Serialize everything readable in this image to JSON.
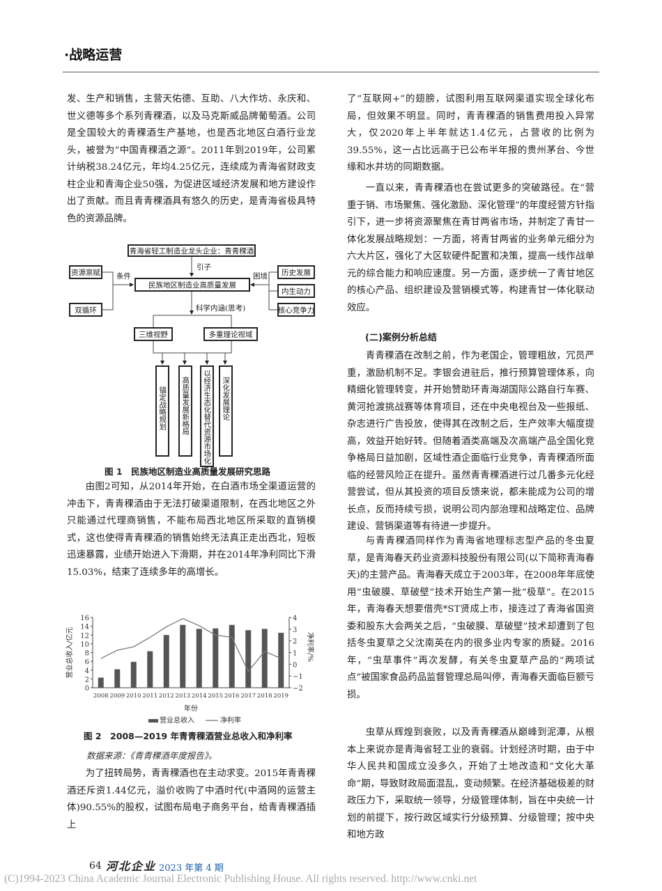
{
  "header": {
    "section": "·战略运营"
  },
  "left": {
    "para1": "发、生产和销售，主营天佑德、互助、八大作坊、永庆和、世义德等多个系列青稞酒，以及马克斯威品牌葡萄酒。公司是全国较大的青稞酒生产基地，也是西北地区白酒行业龙头，被誉为“中国青稞酒之源”。2011年到2019年，公司累计纳税38.24亿元，年均4.25亿元，连续成为青海省财政支柱企业和青海企业50强，为促进区域经济发展和地方建设作出了贡献。而且青青稞酒具有悠久的历史，是青海省极具特色的资源品牌。",
    "para2": "由图2可知，从2014年开始，在白酒市场全渠道运营的冲击下，青青稞酒由于无法打破渠道限制，在西北地区之外只能通过代理商销售，不能布局西北地区所采取的直销模式，这也使得青青稞酒的销售始终无法真正走出西北，短板迅速暴露，业绩开始进入下滑期，并在2014年净利同比下滑15.03%，结束了连续多年的高增长。",
    "source": "数据来源：《青青稞酒年度报告》。",
    "para3": "为了扭转局势，青青稞酒也在主动求变。2015年青青稞酒还斥资1.44亿元，溢价收购了中酒时代(中酒网的运营主体)90.55%的股权，试图布局电子商务平台，给青青稞酒插上"
  },
  "figure1": {
    "caption": "图 1　民族地区制造业高质量发展研究思路",
    "top": "青海省轻工制造业龙头企业：青青稞酒",
    "lead": "引子",
    "center": "民族地区制造业高质量发展",
    "cond_label": "条件",
    "conds": [
      "资源禀赋",
      "双循环"
    ],
    "dilemma_label": "困境",
    "dilemmas": [
      "历史发展",
      "内生动力",
      "核心竞争力"
    ],
    "connotation": "科学内涵(思考)",
    "views": [
      "三维视野",
      "多重理论视域"
    ],
    "outcomes": [
      "锚定战略规划",
      "高质量发展新格局",
      "以经济生态化替代资源市场化",
      "深化发展理论"
    ]
  },
  "chart_data": {
    "type": "bar+line",
    "categories": [
      "2008",
      "2009",
      "2010",
      "2011",
      "2012",
      "2013",
      "2014",
      "2015",
      "2016",
      "2017",
      "2018",
      "2019"
    ],
    "series": [
      {
        "name": "营业总收入",
        "type": "bar",
        "axis": "left",
        "values": [
          2.3,
          4.2,
          5.9,
          8.3,
          12.0,
          14.3,
          13.4,
          13.5,
          14.3,
          13.1,
          13.4,
          12.5
        ],
        "color": "#555555"
      },
      {
        "name": "净利率",
        "type": "line",
        "axis": "right",
        "values": [
          0.5,
          1.2,
          1.5,
          2.3,
          3.2,
          3.9,
          3.3,
          2.5,
          2.3,
          -0.6,
          1.1,
          0.5
        ],
        "color": "#777777"
      }
    ],
    "xlabel": "年份",
    "ylabel": "营业总收入/亿元",
    "y2label": "净利率/%",
    "ylim": [
      0,
      16
    ],
    "yticks": [
      "0",
      "2",
      "4",
      "6",
      "8",
      "10",
      "12",
      "14",
      "16"
    ],
    "y2lim": [
      -2,
      4
    ],
    "y2ticks": [
      "−2",
      "−1",
      "0",
      "1",
      "2",
      "3",
      "4"
    ],
    "legend": "bottom",
    "caption": "图 2　2008—2019 年青青稞酒营业总收入和净利率"
  },
  "right": {
    "para1": "了“互联网+”的翅膀，试图利用互联网渠道实现全球化布局，但效果不明显。同时，青青稞酒的销售费用投入异常大，仅2020年上半年就达1.4亿元，占营收的比例为39.55%，这一占比远高于已公布半年报的贵州茅台、今世缘和水井坊的同期数据。",
    "para2": "一直以来，青青稞酒也在尝试更多的突破路径。在“营重于销、市场聚焦、强化激励、深化管理”的年度经营方针指引下，进一步将资源聚焦在青甘两省市场，并制定了青甘一体化发展战略规划：一方面，将青甘两省的业务单元细分为六大片区，强化了大区软硬件配置和决策，提高一线作战单元的综合能力和响应速度。另一方面，逐步统一了青甘地区的核心产品、组织建设及营销模式等，构建青甘一体化联动效应。",
    "heading": "(二)案例分析总结",
    "para3": "青青稞酒在改制之前，作为老国企，管理粗放，冗员严重，激励机制不足。李银会进驻后，推行预算管理体系，向精细化管理转变，并开始赞助环青海湖国际公路自行车赛、黄河抢渡挑战赛等体育项目，还在中央电视台及一些报纸、杂志进行广告投放，使得其在改制之后，生产效率大幅度提高，效益开始好转。但随着酒类高端及次高端产品全国化竞争格局日益加剧，区域性酒企面临行业竞争，青青稞酒所面临的经营风险正在提升。虽然青青稞酒进行过几番多元化经营尝试，但从其投资的项目反馈来说，都未能成为公司的增长点，反而持续亏损，说明公司内部治理和战略定位、品牌建设、营销渠道等有待进一步提升。",
    "para4": "与青青稞酒同样作为青海省地理标志型产品的冬虫夏草，是青海春天药业资源科技股份有限公司(以下简称青海春天)的主营产品。青海春天成立于2003年，在2008年年底使用“虫破膜、草破壁”技术开始生产第一批“极草”。在2015年，青海春天想要借壳*ST贤成上市，接连过了青海省国资委和股东大会两关之后，“虫破膜、草破壁”技术却遭到了包括冬虫夏草之父沈南英在内的很多业内专家的质疑。2016年，“虫草事件”再次发酵，有关冬虫夏草产品的“两项试点”被国家食品药品监督管理总局叫停，青海春天面临巨额亏损。",
    "para5": "虫草从辉煌到衰败，以及青青稞酒从巅峰到泥潭，从根本上来说亦是青海省轻工业的衰弱。计划经济时期，由于中华人民共和国成立没多久，开始了土地改造和“文化大革命”期，导致财政局面混乱，变动频繁。在经济基础极差的财政压力下，采取统一领导，分级管理体制，旨在中央统一计划的前提下，按行政区域实行分级预算、分级管理；按中央和地方政"
  },
  "footer": {
    "page": "64",
    "journal": "河北企业",
    "issue": "2023 年第 4 期",
    "copyright": "(C)1994-2023 China Academic Journal Electronic Publishing House. All rights reserved.    http://www.cnki.net"
  }
}
